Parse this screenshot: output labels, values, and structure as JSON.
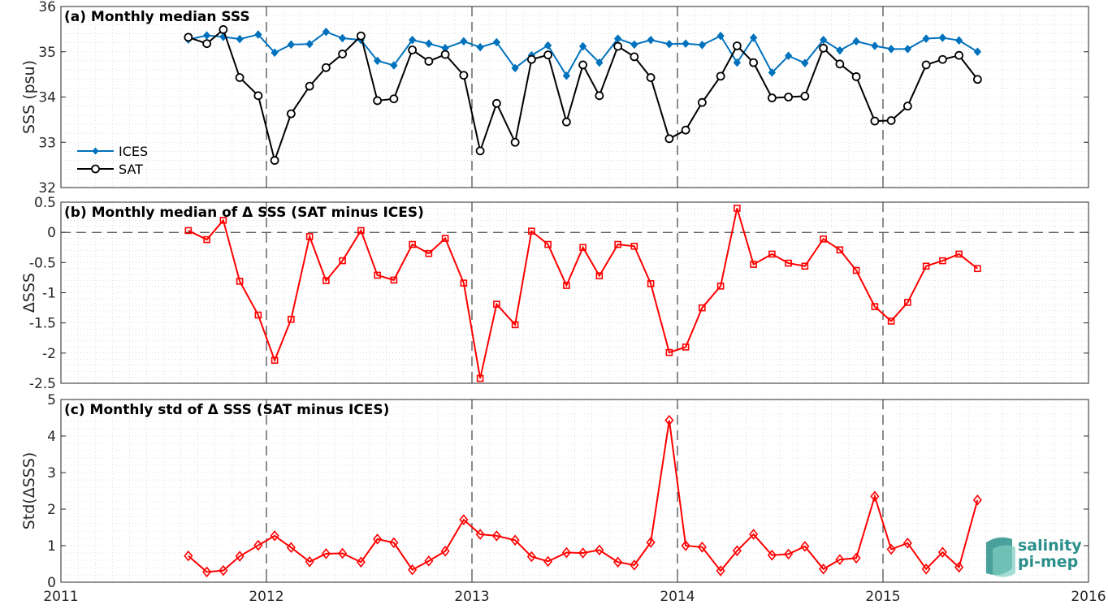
{
  "x_axis": {
    "ticks": [
      "2011",
      "2012",
      "2013",
      "2014",
      "2015",
      "2016"
    ],
    "xlim": [
      2011,
      2016
    ]
  },
  "logo": {
    "line1": "salinity",
    "line2": "pi-mep",
    "color": "#2a8f8a"
  },
  "chart_data": [
    {
      "type": "line",
      "title": "(a) Monthly median SSS",
      "ylabel": "SSS (psu)",
      "ylim": [
        32,
        36
      ],
      "yticks": [
        "32",
        "33",
        "34",
        "35",
        "36"
      ],
      "legend": {
        "placement": "lower-left",
        "entries": [
          "ICES",
          "SAT"
        ]
      },
      "grid": true,
      "x": [
        2011.62,
        2011.71,
        2011.79,
        2011.87,
        2011.96,
        2012.04,
        2012.12,
        2012.21,
        2012.29,
        2012.37,
        2012.46,
        2012.54,
        2012.62,
        2012.71,
        2012.79,
        2012.87,
        2012.96,
        2013.04,
        2013.12,
        2013.21,
        2013.29,
        2013.37,
        2013.46,
        2013.54,
        2013.62,
        2013.71,
        2013.79,
        2013.87,
        2013.96,
        2014.04,
        2014.12,
        2014.21,
        2014.29,
        2014.37,
        2014.46,
        2014.54,
        2014.62,
        2014.71,
        2014.79,
        2014.87,
        2014.96,
        2015.04,
        2015.12,
        2015.21,
        2015.29,
        2015.37,
        2015.46
      ],
      "series": [
        {
          "name": "ICES",
          "color": "#0072BD",
          "marker": "diamond",
          "values": [
            35.27,
            35.36,
            35.33,
            35.28,
            35.38,
            34.98,
            35.16,
            35.17,
            35.44,
            35.3,
            35.26,
            34.8,
            34.7,
            35.26,
            35.18,
            35.08,
            35.23,
            35.1,
            35.21,
            34.64,
            34.92,
            35.14,
            34.47,
            35.12,
            34.76,
            35.29,
            35.16,
            35.26,
            35.17,
            35.18,
            35.15,
            35.35,
            34.76,
            35.31,
            34.54,
            34.91,
            34.75,
            35.26,
            35.03,
            35.23,
            35.13,
            35.06,
            35.06,
            35.29,
            35.31,
            35.25,
            35.0
          ]
        },
        {
          "name": "SAT",
          "color": "#000000",
          "marker": "circle",
          "values": [
            35.32,
            35.18,
            35.49,
            34.43,
            34.03,
            32.6,
            33.63,
            34.24,
            34.65,
            34.95,
            35.35,
            33.92,
            33.96,
            35.04,
            34.79,
            34.94,
            34.48,
            32.81,
            33.86,
            33.0,
            34.83,
            34.93,
            33.45,
            34.71,
            34.03,
            35.12,
            34.89,
            34.43,
            33.08,
            33.27,
            33.88,
            34.46,
            35.13,
            34.76,
            33.98,
            34.0,
            34.02,
            35.08,
            34.73,
            34.45,
            33.47,
            33.48,
            33.8,
            34.71,
            34.83,
            34.92,
            34.39
          ]
        }
      ]
    },
    {
      "type": "line",
      "title": "(b) Monthly median of Δ SSS (SAT minus ICES)",
      "ylabel": "ΔSSS",
      "ylim": [
        -2.5,
        0.5
      ],
      "yticks": [
        "-2.5",
        "-2",
        "-1.5",
        "-1",
        "-0.5",
        "0",
        "0.5"
      ],
      "grid": true,
      "x": [
        2011.62,
        2011.71,
        2011.79,
        2011.87,
        2011.96,
        2012.04,
        2012.12,
        2012.21,
        2012.29,
        2012.37,
        2012.46,
        2012.54,
        2012.62,
        2012.71,
        2012.79,
        2012.87,
        2012.96,
        2013.04,
        2013.12,
        2013.21,
        2013.29,
        2013.37,
        2013.46,
        2013.54,
        2013.62,
        2013.71,
        2013.79,
        2013.87,
        2013.96,
        2014.04,
        2014.12,
        2014.21,
        2014.29,
        2014.37,
        2014.46,
        2014.54,
        2014.62,
        2014.71,
        2014.79,
        2014.87,
        2014.96,
        2015.04,
        2015.12,
        2015.21,
        2015.29,
        2015.37,
        2015.46
      ],
      "series": [
        {
          "color": "#FF0000",
          "marker": "square",
          "values": [
            0.03,
            -0.12,
            0.2,
            -0.81,
            -1.37,
            -2.12,
            -1.44,
            -0.07,
            -0.8,
            -0.47,
            0.03,
            -0.71,
            -0.79,
            -0.2,
            -0.35,
            -0.1,
            -0.84,
            -2.42,
            -1.19,
            -1.53,
            0.02,
            -0.2,
            -0.88,
            -0.25,
            -0.72,
            -0.2,
            -0.23,
            -0.85,
            -1.99,
            -1.9,
            -1.25,
            -0.89,
            0.4,
            -0.53,
            -0.36,
            -0.51,
            -0.56,
            -0.11,
            -0.29,
            -0.63,
            -1.23,
            -1.47,
            -1.16,
            -0.56,
            -0.47,
            -0.36,
            -0.6
          ]
        }
      ]
    },
    {
      "type": "line",
      "title": "(c) Monthly std of Δ SSS (SAT minus ICES)",
      "ylabel": "Std(ΔSSS)",
      "ylim": [
        0,
        5
      ],
      "yticks": [
        "0",
        "1",
        "2",
        "3",
        "4",
        "5"
      ],
      "grid": true,
      "x": [
        2011.62,
        2011.71,
        2011.79,
        2011.87,
        2011.96,
        2012.04,
        2012.12,
        2012.21,
        2012.29,
        2012.37,
        2012.46,
        2012.54,
        2012.62,
        2012.71,
        2012.79,
        2012.87,
        2012.96,
        2013.04,
        2013.12,
        2013.21,
        2013.29,
        2013.37,
        2013.46,
        2013.54,
        2013.62,
        2013.71,
        2013.79,
        2013.87,
        2013.96,
        2014.04,
        2014.12,
        2014.21,
        2014.29,
        2014.37,
        2014.46,
        2014.54,
        2014.62,
        2014.71,
        2014.79,
        2014.87,
        2014.96,
        2015.04,
        2015.12,
        2015.21,
        2015.29,
        2015.37,
        2015.46
      ],
      "series": [
        {
          "color": "#FF0000",
          "marker": "diamond-open",
          "values": [
            0.72,
            0.28,
            0.32,
            0.71,
            1.01,
            1.27,
            0.95,
            0.56,
            0.78,
            0.79,
            0.55,
            1.18,
            1.08,
            0.34,
            0.58,
            0.85,
            1.71,
            1.31,
            1.27,
            1.15,
            0.7,
            0.57,
            0.81,
            0.8,
            0.88,
            0.55,
            0.47,
            1.09,
            4.43,
            1.0,
            0.96,
            0.31,
            0.86,
            1.31,
            0.74,
            0.77,
            0.98,
            0.36,
            0.62,
            0.66,
            2.35,
            0.9,
            1.07,
            0.36,
            0.82,
            0.41,
            2.25
          ]
        }
      ]
    }
  ]
}
